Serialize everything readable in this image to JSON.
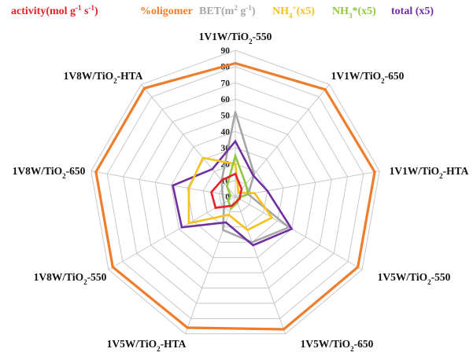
{
  "chart_data": {
    "type": "radar",
    "title": "",
    "categories": [
      {
        "main": "1V1W/TiO",
        "sub": "2",
        "tail": "-550"
      },
      {
        "main": "1V1W/TiO",
        "sub": "2",
        "tail": "-650"
      },
      {
        "main": "1V1W/TiO",
        "sub": "2",
        "tail": "-HTA"
      },
      {
        "main": "1V5W/TiO",
        "sub": "2",
        "tail": "-550"
      },
      {
        "main": "1V5W/TiO",
        "sub": "2",
        "tail": "-650"
      },
      {
        "main": "1V5W/TiO",
        "sub": "2",
        "tail": "-HTA"
      },
      {
        "main": "1V8W/TiO",
        "sub": "2",
        "tail": "-550"
      },
      {
        "main": "1V8W/TiO",
        "sub": "2",
        "tail": "-650"
      },
      {
        "main": "1V8W/TiO",
        "sub": "2",
        "tail": "-HTA"
      }
    ],
    "rlim": [
      0,
      90
    ],
    "ticks": [
      "0",
      "10",
      "20",
      "30",
      "40",
      "50",
      "60",
      "70",
      "80",
      "90"
    ],
    "grid": true,
    "legend_position": "top",
    "legend": [
      {
        "parts": [
          {
            "t": "activity(mol g"
          },
          {
            "t": "-1",
            "sup": true
          },
          {
            "t": " s"
          },
          {
            "t": "-1",
            "sup": true
          },
          {
            "t": ")"
          }
        ],
        "color": "#e8202a"
      },
      {
        "parts": [
          {
            "t": "%oligomer"
          }
        ],
        "color": "#ef7d2b"
      },
      {
        "parts": [
          {
            "t": "BET(m"
          },
          {
            "t": "2",
            "sup": true
          },
          {
            "t": " g"
          },
          {
            "t": "-1",
            "sup": true
          },
          {
            "t": ")"
          }
        ],
        "color": "#a6a6a6"
      },
      {
        "parts": [
          {
            "t": "NH"
          },
          {
            "t": "4",
            "sub": true
          },
          {
            "t": "+",
            "sup": true
          },
          {
            "t": "(x5)"
          }
        ],
        "color": "#f6c21c"
      },
      {
        "parts": [
          {
            "t": "NH"
          },
          {
            "t": "3",
            "sub": true
          },
          {
            "t": "*(x5)"
          }
        ],
        "color": "#92c740"
      },
      {
        "parts": [
          {
            "t": "total (x5)"
          }
        ],
        "color": "#7030a0"
      }
    ],
    "series": [
      {
        "name": "activity",
        "color": "#e8202a",
        "values": [
          14,
          6,
          3,
          3,
          3,
          6,
          14,
          15,
          13
        ]
      },
      {
        "name": "%oligomer",
        "color": "#ef7d2b",
        "values": [
          82,
          86,
          87,
          87,
          87,
          86,
          87,
          87,
          87
        ]
      },
      {
        "name": "BET",
        "color": "#a6a6a6",
        "values": [
          52,
          18,
          8,
          38,
          30,
          22,
          8,
          8,
          13
        ]
      },
      {
        "name": "NH4+(x5)",
        "color": "#f6c21c",
        "values": [
          20,
          3,
          12,
          26,
          22,
          12,
          33,
          29,
          31
        ]
      },
      {
        "name": "NH3*(x5)",
        "color": "#92c740",
        "values": [
          25,
          10,
          8,
          2,
          4,
          8,
          5,
          3,
          8
        ]
      },
      {
        "name": "total (x5)",
        "color": "#7030a0",
        "values": [
          34,
          17,
          20,
          40,
          32,
          17,
          38,
          39,
          22
        ]
      }
    ]
  }
}
